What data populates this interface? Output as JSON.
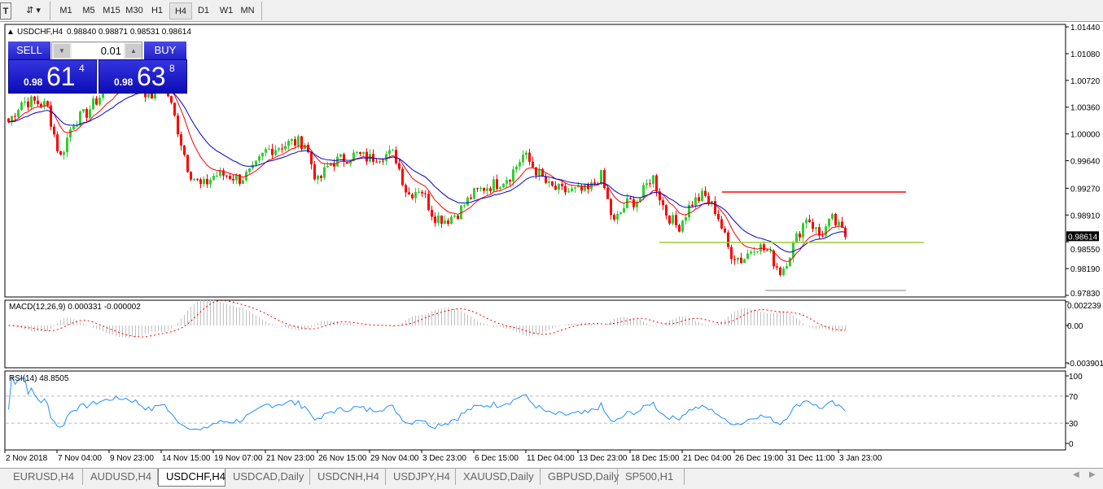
{
  "toolbar": {
    "icons": [
      "text-tool-icon",
      "objects-dropdown-icon"
    ],
    "timeframes": [
      "M1",
      "M5",
      "M15",
      "M30",
      "H1",
      "H4",
      "D1",
      "W1",
      "MN"
    ],
    "active_timeframe": "H4"
  },
  "chart_header": {
    "symbol": "USDCHF,H4",
    "ohlc": "0.98840 0.98871 0.98531 0.98614"
  },
  "trade_panel": {
    "sell_label": "SELL",
    "buy_label": "BUY",
    "lot": "0.01",
    "sell_price": {
      "prefix": "0.98",
      "big": "61",
      "sup": "4"
    },
    "buy_price": {
      "prefix": "0.98",
      "big": "63",
      "sup": "8"
    }
  },
  "colors": {
    "bull": "#32cd32",
    "bear": "#ff0000",
    "ma_fast": "#ff0000",
    "ma_slow": "#0000cc",
    "rsi": "#1e90ff",
    "macd_hist": "#c0c0c0",
    "macd_signal": "#ff0000",
    "current_price_bg": "#000000",
    "support_line": "#9acd32",
    "resistance_line": "#ff0000",
    "low_line": "#808080"
  },
  "chart_data": {
    "type": "candlestick",
    "symbol": "USDCHF",
    "timeframe": "H4",
    "price_axis_ticks": [
      "1.01440",
      "1.01080",
      "1.00720",
      "1.00360",
      "1.00000",
      "0.99640",
      "0.99270",
      "0.98910",
      "0.98550",
      "0.98190",
      "0.97830"
    ],
    "ylim": [
      0.9783,
      1.0144
    ],
    "current_price": "0.98614",
    "close_trace": [
      1.0016,
      1.00434,
      1.00434,
      1.00379,
      0.99668,
      1.0016,
      1.0027,
      1.00488,
      1.00652,
      1.00762,
      1.00707,
      1.00488,
      1.00762,
      1.0016,
      0.99504,
      0.99285,
      0.99449,
      0.99449,
      0.99394,
      0.99504,
      0.99777,
      0.99832,
      0.99887,
      0.99887,
      0.9934,
      0.99613,
      0.99668,
      0.99723,
      0.99668,
      0.99723,
      0.99723,
      0.99176,
      0.99285,
      0.98902,
      0.98847,
      0.98957,
      0.99176,
      0.99285,
      0.9934,
      0.99449,
      0.99723,
      0.99504,
      0.99285,
      0.9923,
      0.9923,
      0.9923,
      0.99449,
      0.98793,
      0.99066,
      0.99121,
      0.99449,
      0.98957,
      0.98738,
      0.99066,
      0.99176,
      0.98957,
      0.9841,
      0.983,
      0.98519,
      0.9841,
      0.98136,
      0.98519,
      0.98902,
      0.98629,
      0.98847,
      0.98629
    ],
    "horizontal_lines": [
      0.99219,
      0.98541,
      0.97896
    ],
    "x_tick_labels": [
      "2 Nov 2018",
      "7 Nov 04:00",
      "9 Nov 23:00",
      "14 Nov 15:00",
      "19 Nov 07:00",
      "21 Nov 23:00",
      "26 Nov 15:00",
      "29 Nov 04:00",
      "3 Dec 23:00",
      "6 Dec 15:00",
      "11 Dec 04:00",
      "13 Dec 23:00",
      "18 Dec 15:00",
      "21 Dec 04:00",
      "26 Dec 19:00",
      "31 Dec 11:00",
      "3 Jan 23:00"
    ],
    "macd": {
      "label": "MACD(12,26,9) 0.000331 -0.000002",
      "ticks": [
        "0.002239",
        "0.00",
        "-0.003901"
      ],
      "ylim": [
        -0.003901,
        0.002239
      ]
    },
    "rsi": {
      "label": "RSI(14) 48.8505",
      "ticks": [
        "100",
        "70",
        "30",
        "0"
      ],
      "levels": [
        70,
        30
      ],
      "ylim": [
        0,
        100
      ]
    }
  },
  "tabs": {
    "items": [
      "EURUSD,H4",
      "AUDUSD,H4",
      "USDCHF,H4",
      "USDCAD,Daily",
      "USDCNH,H4",
      "USDJPY,H4",
      "XAUUSD,Daily",
      "GBPUSD,Daily",
      "SP500,H1"
    ],
    "active": "USDCHF,H4"
  }
}
